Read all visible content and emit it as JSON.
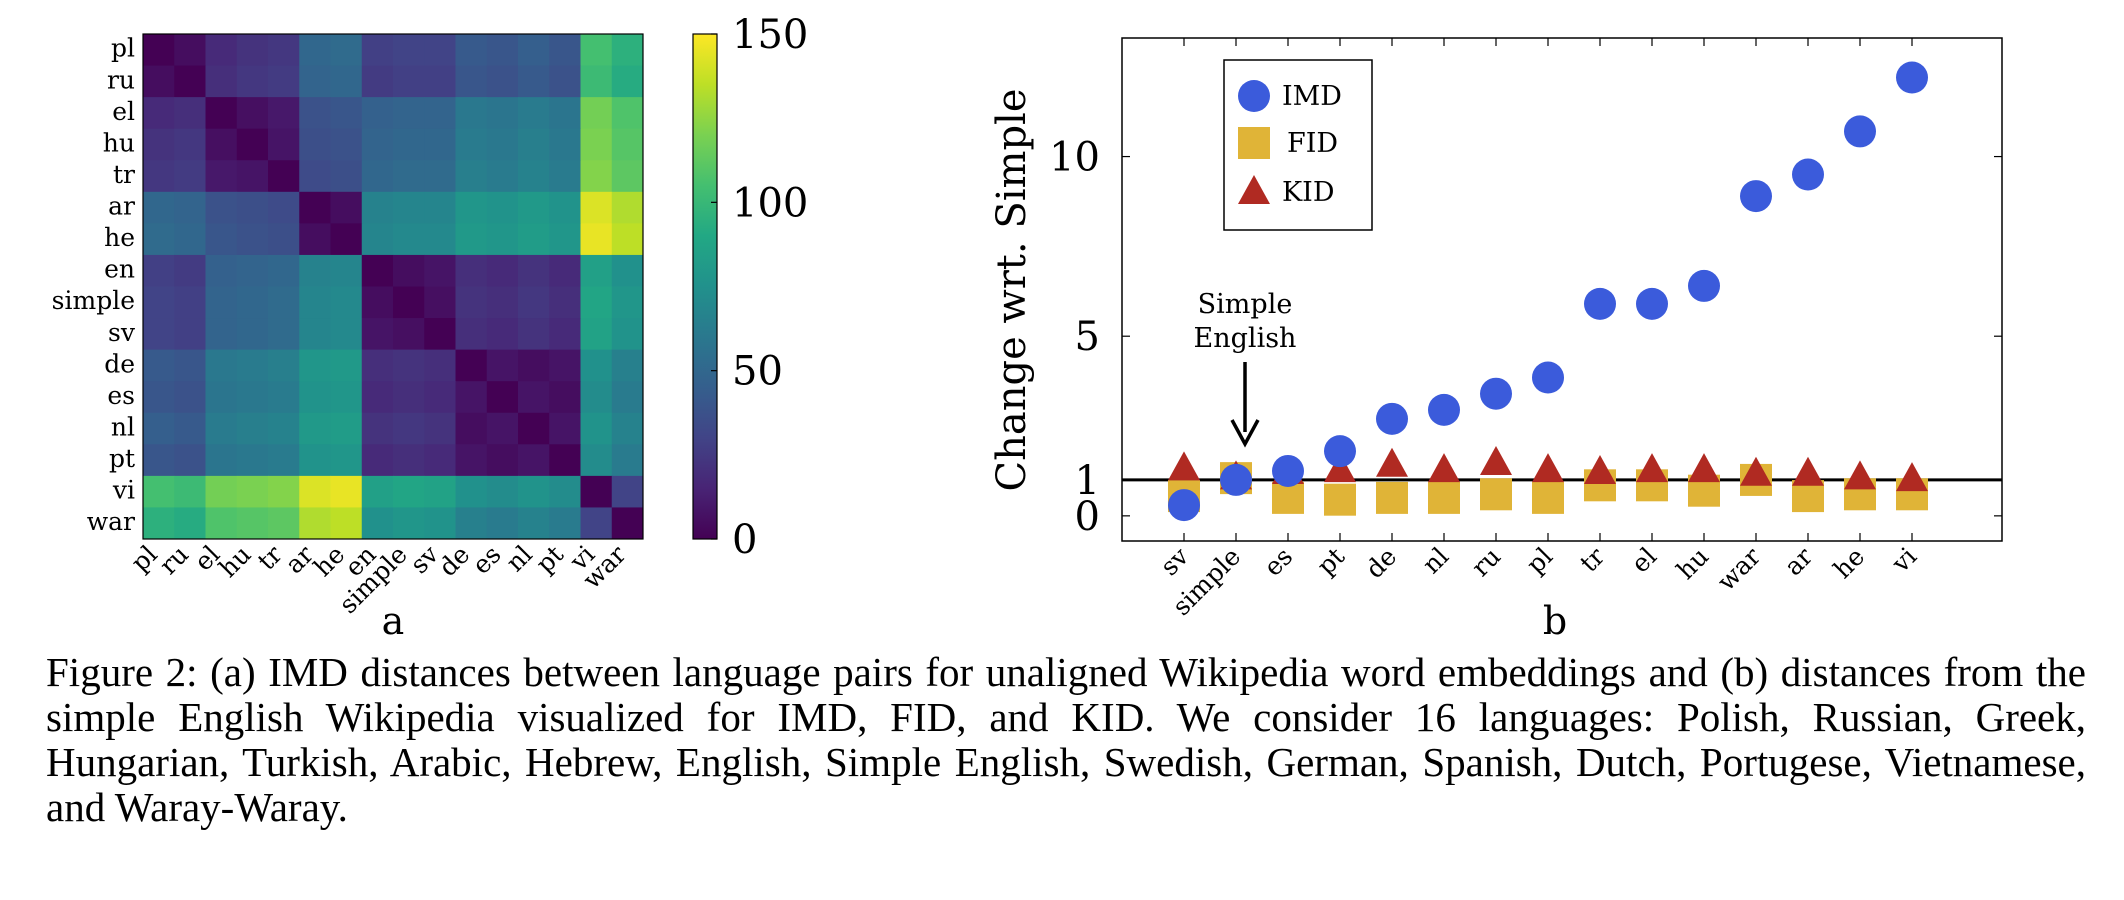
{
  "figure": {
    "panel_a_label": "a",
    "panel_b_label": "b",
    "simple_english_annotation": [
      "Simple",
      "English"
    ]
  },
  "caption": "Figure 2: (a) IMD distances between language pairs for unaligned Wikipedia word embeddings and (b) distances from the simple English Wikipedia visualized for IMD, FID, and KID. We consider 16 languages: Polish, Russian, Greek, Hungarian, Turkish, Arabic, Hebrew, English, Simple English, Swedish, German, Spanish, Dutch, Portugese, Vietnamese, and Waray-Waray.",
  "colors": {
    "imd": "#3b5bdb",
    "fid": "#e0b437",
    "kid": "#b02a22",
    "colormap": [
      "#440154",
      "#482475",
      "#414487",
      "#355f8d",
      "#2a788e",
      "#21918c",
      "#22a884",
      "#44bf70",
      "#7ad151",
      "#bddf26",
      "#fde725"
    ]
  },
  "chart_data": [
    {
      "type": "heatmap",
      "title": "",
      "labels": [
        "pl",
        "ru",
        "el",
        "hu",
        "tr",
        "ar",
        "he",
        "en",
        "simple",
        "sv",
        "de",
        "es",
        "nl",
        "pt",
        "vi",
        "war"
      ],
      "colorbar": {
        "min": 0,
        "max": 150,
        "ticks": [
          0,
          50,
          100,
          150
        ]
      },
      "values": [
        [
          0,
          5,
          18,
          22,
          24,
          50,
          52,
          28,
          30,
          30,
          42,
          40,
          45,
          40,
          105,
          95
        ],
        [
          5,
          0,
          20,
          24,
          26,
          48,
          50,
          26,
          28,
          28,
          40,
          38,
          42,
          38,
          102,
          92
        ],
        [
          18,
          20,
          0,
          6,
          10,
          38,
          40,
          46,
          48,
          48,
          60,
          58,
          62,
          58,
          118,
          108
        ],
        [
          22,
          24,
          6,
          0,
          8,
          36,
          38,
          48,
          50,
          50,
          62,
          60,
          64,
          60,
          120,
          110
        ],
        [
          24,
          26,
          10,
          8,
          0,
          34,
          36,
          50,
          52,
          52,
          64,
          62,
          66,
          62,
          122,
          112
        ],
        [
          50,
          48,
          38,
          36,
          34,
          0,
          5,
          66,
          68,
          68,
          78,
          76,
          80,
          76,
          142,
          132
        ],
        [
          52,
          50,
          40,
          38,
          36,
          5,
          0,
          68,
          70,
          70,
          80,
          78,
          82,
          78,
          145,
          135
        ],
        [
          28,
          26,
          46,
          48,
          50,
          66,
          68,
          0,
          5,
          8,
          20,
          18,
          22,
          18,
          85,
          75
        ],
        [
          30,
          28,
          48,
          50,
          52,
          68,
          70,
          5,
          0,
          6,
          22,
          20,
          24,
          20,
          88,
          78
        ],
        [
          30,
          28,
          48,
          50,
          52,
          68,
          70,
          8,
          6,
          0,
          20,
          18,
          22,
          18,
          86,
          76
        ],
        [
          42,
          40,
          60,
          62,
          64,
          78,
          80,
          20,
          22,
          20,
          0,
          8,
          5,
          8,
          75,
          65
        ],
        [
          40,
          38,
          58,
          60,
          62,
          76,
          78,
          18,
          20,
          18,
          8,
          0,
          8,
          5,
          72,
          62
        ],
        [
          45,
          42,
          62,
          64,
          66,
          80,
          82,
          22,
          24,
          22,
          5,
          8,
          0,
          8,
          76,
          66
        ],
        [
          40,
          38,
          58,
          60,
          62,
          76,
          78,
          18,
          20,
          18,
          8,
          5,
          8,
          0,
          72,
          62
        ],
        [
          105,
          102,
          118,
          120,
          122,
          142,
          145,
          85,
          88,
          86,
          75,
          72,
          76,
          72,
          0,
          30
        ],
        [
          95,
          92,
          108,
          110,
          112,
          132,
          135,
          75,
          78,
          76,
          65,
          62,
          66,
          62,
          30,
          0
        ]
      ]
    },
    {
      "type": "scatter",
      "title": "",
      "xlabel": "",
      "ylabel": "Change wrt. Simple",
      "categories": [
        "sv",
        "simple",
        "es",
        "pt",
        "de",
        "nl",
        "ru",
        "pl",
        "tr",
        "el",
        "hu",
        "war",
        "ar",
        "he",
        "vi"
      ],
      "ylim": [
        -0.7,
        13.3
      ],
      "yticks": [
        0,
        1,
        5,
        10
      ],
      "reference_line": 1,
      "legend": "top-left",
      "series": [
        {
          "name": "IMD",
          "marker": "circle",
          "values": [
            0.3,
            1.0,
            1.25,
            1.8,
            2.7,
            2.95,
            3.4,
            3.85,
            5.9,
            5.9,
            6.4,
            8.9,
            9.5,
            10.7,
            12.2
          ]
        },
        {
          "name": "FID",
          "marker": "square",
          "values": [
            0.55,
            1.05,
            0.5,
            0.45,
            0.5,
            0.5,
            0.6,
            0.5,
            0.85,
            0.85,
            0.7,
            1.0,
            0.55,
            0.6,
            0.6
          ]
        },
        {
          "name": "KID",
          "marker": "triangle",
          "values": [
            1.35,
            1.1,
            1.25,
            1.3,
            1.45,
            1.3,
            1.5,
            1.3,
            1.25,
            1.3,
            1.3,
            1.2,
            1.2,
            1.1,
            1.05
          ]
        }
      ]
    }
  ]
}
